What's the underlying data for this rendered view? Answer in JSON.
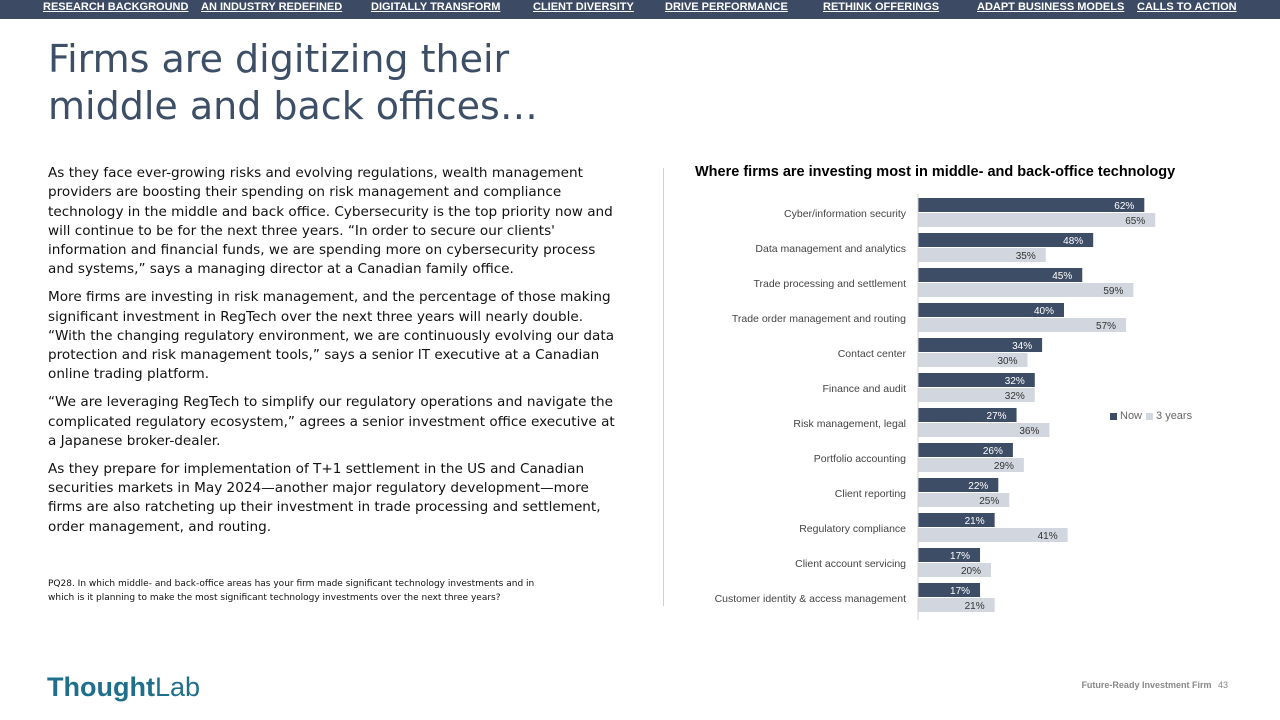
{
  "nav": {
    "links": [
      "RESEARCH BACKGROUND",
      "AN INDUSTRY REDEFINED",
      "DIGITALLY TRANSFORM",
      "CLIENT DIVERSITY",
      "DRIVE PERFORMANCE",
      "RETHINK OFFERINGS",
      "ADAPT BUSINESS MODELS",
      "CALLS TO ACTION"
    ]
  },
  "page": {
    "title_line1": "Firms are digitizing their",
    "title_line2": "middle and back offices…",
    "paragraphs": [
      "As they face ever-growing risks and evolving regulations, wealth management providers are boosting their spending on risk management and compliance technology in the middle and back office. Cybersecurity is the top priority now and will continue to be for the next three years. “In order to secure our clients' information and financial funds, we are spending more on cybersecurity process and systems,” says a managing director at a Canadian family office.",
      "More firms are investing in risk management, and the percentage of those making significant investment in RegTech over the next three years will nearly double. “With the changing regulatory environment, we are continuously evolving our data protection and risk management tools,” says a senior IT executive at a Canadian online trading platform.",
      "“We are leveraging RegTech to simplify our regulatory operations and navigate the complicated regulatory ecosystem,” agrees a senior investment office executive at a Japanese broker-dealer.",
      "As they prepare for implementation of T+1 settlement in the US and Canadian securities markets in May 2024—another major regulatory development—more firms are also ratcheting up their investment in trade processing and settlement, order management, and routing."
    ],
    "footnote_line1": "PQ28. In which middle- and back-office areas has your firm made significant technology investments and in",
    "footnote_line2": "which is it planning to make the most significant technology investments over the next three years?"
  },
  "chart_data": {
    "type": "bar",
    "orientation": "horizontal",
    "title": "Where firms are investing most in middle- and back-office technology",
    "categories": [
      "Cyber/information security",
      "Data management and analytics",
      "Trade processing and settlement",
      "Trade order management and routing",
      "Contact center",
      "Finance and audit",
      "Risk management, legal",
      "Portfolio accounting",
      "Client reporting",
      "Regulatory compliance",
      "Client account servicing",
      "Customer identity & access management"
    ],
    "series": [
      {
        "name": "Now",
        "color": "#3e4d66",
        "values": [
          62,
          48,
          45,
          40,
          34,
          32,
          27,
          26,
          22,
          21,
          17,
          17
        ]
      },
      {
        "name": "3 years",
        "color": "#d2d6de",
        "values": [
          65,
          35,
          59,
          57,
          30,
          32,
          36,
          29,
          25,
          41,
          20,
          21
        ]
      }
    ],
    "value_suffix": "%",
    "legend_position": "right",
    "grid": false
  },
  "footer": {
    "logo_bold": "Thought",
    "logo_light": "Lab",
    "brand": "Future-Ready Investment Firm",
    "page_number": "43"
  }
}
